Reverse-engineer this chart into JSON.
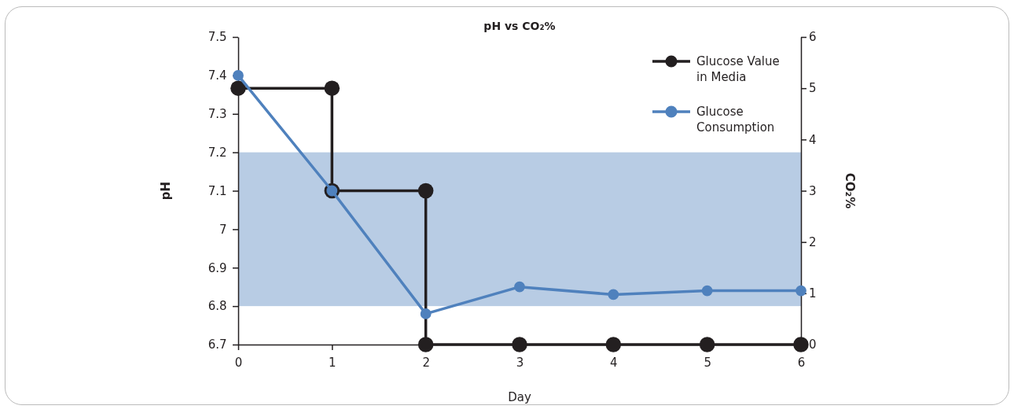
{
  "chart_data": {
    "type": "line",
    "title": "pH vs CO₂%",
    "xlabel": "Day",
    "ylabel": "pH",
    "y2label": "CO₂%",
    "x": [
      0,
      1,
      2,
      3,
      4,
      5,
      6
    ],
    "xlim": [
      0,
      6
    ],
    "xticks": [
      0,
      1,
      2,
      3,
      4,
      5,
      6
    ],
    "ylim": [
      6.7,
      7.5
    ],
    "yticks": [
      6.7,
      6.8,
      6.9,
      7,
      7.1,
      7.2,
      7.3,
      7.4,
      7.5
    ],
    "y2lim": [
      0,
      6
    ],
    "y2ticks": [
      0,
      1,
      2,
      3,
      4,
      5,
      6
    ],
    "series": [
      {
        "name": "Glucose Value in Media",
        "color": "#231f20",
        "axis": "y2",
        "x": [
          0,
          1,
          1,
          2,
          2,
          3,
          4,
          5,
          6
        ],
        "values": [
          5,
          5,
          3,
          3,
          0,
          0,
          0,
          0,
          0
        ]
      },
      {
        "name": "Glucose Consumption",
        "color": "#4f81bd",
        "values": [
          7.4,
          7.1,
          6.78,
          6.85,
          6.83,
          6.84,
          6.84
        ]
      }
    ],
    "bands": [
      {
        "axis": "y",
        "from": 6.8,
        "to": 7.2,
        "color": "#b8cce4"
      }
    ],
    "marker": "circle",
    "line_style": "solid",
    "grid": false,
    "legend": "top right"
  }
}
